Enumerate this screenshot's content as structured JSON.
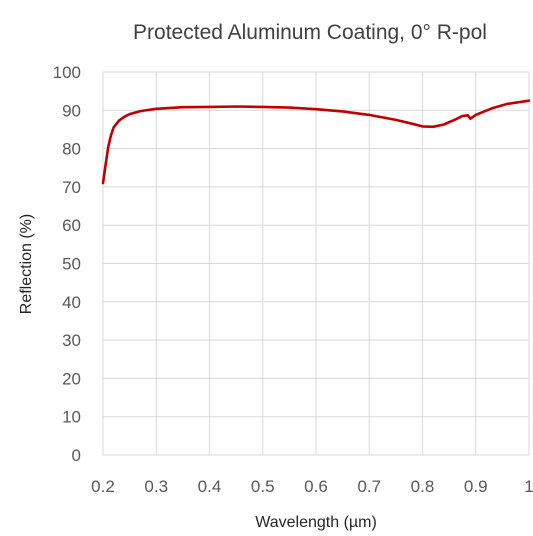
{
  "chart_data": {
    "type": "line",
    "title": "Protected Aluminum Coating, 0° R-pol",
    "xlabel": "Wavelength (µm)",
    "ylabel": "Reflection (%)",
    "xlim": [
      0.2,
      1.0
    ],
    "ylim": [
      0,
      100
    ],
    "x_ticks": [
      "0.2",
      "0.3",
      "0.4",
      "0.5",
      "0.6",
      "0.7",
      "0.8",
      "0.9",
      "1"
    ],
    "y_ticks": [
      "0",
      "10",
      "20",
      "30",
      "40",
      "50",
      "60",
      "70",
      "80",
      "90",
      "100"
    ],
    "grid": true,
    "line_color": "#c00000",
    "series": [
      {
        "x": [
          0.2,
          0.205,
          0.21,
          0.215,
          0.22,
          0.23,
          0.24,
          0.25,
          0.27,
          0.3,
          0.35,
          0.4,
          0.45,
          0.5,
          0.55,
          0.6,
          0.65,
          0.7,
          0.75,
          0.78,
          0.8,
          0.82,
          0.84,
          0.86,
          0.875,
          0.885,
          0.89,
          0.9,
          0.93,
          0.96,
          1.0
        ],
        "y": [
          71,
          76,
          80.5,
          83.5,
          85.5,
          87.3,
          88.3,
          89,
          89.8,
          90.4,
          90.8,
          90.9,
          91,
          90.9,
          90.7,
          90.3,
          89.7,
          88.8,
          87.5,
          86.5,
          85.8,
          85.7,
          86.3,
          87.5,
          88.5,
          88.7,
          87.8,
          88.8,
          90.5,
          91.7,
          92.5
        ]
      }
    ]
  }
}
